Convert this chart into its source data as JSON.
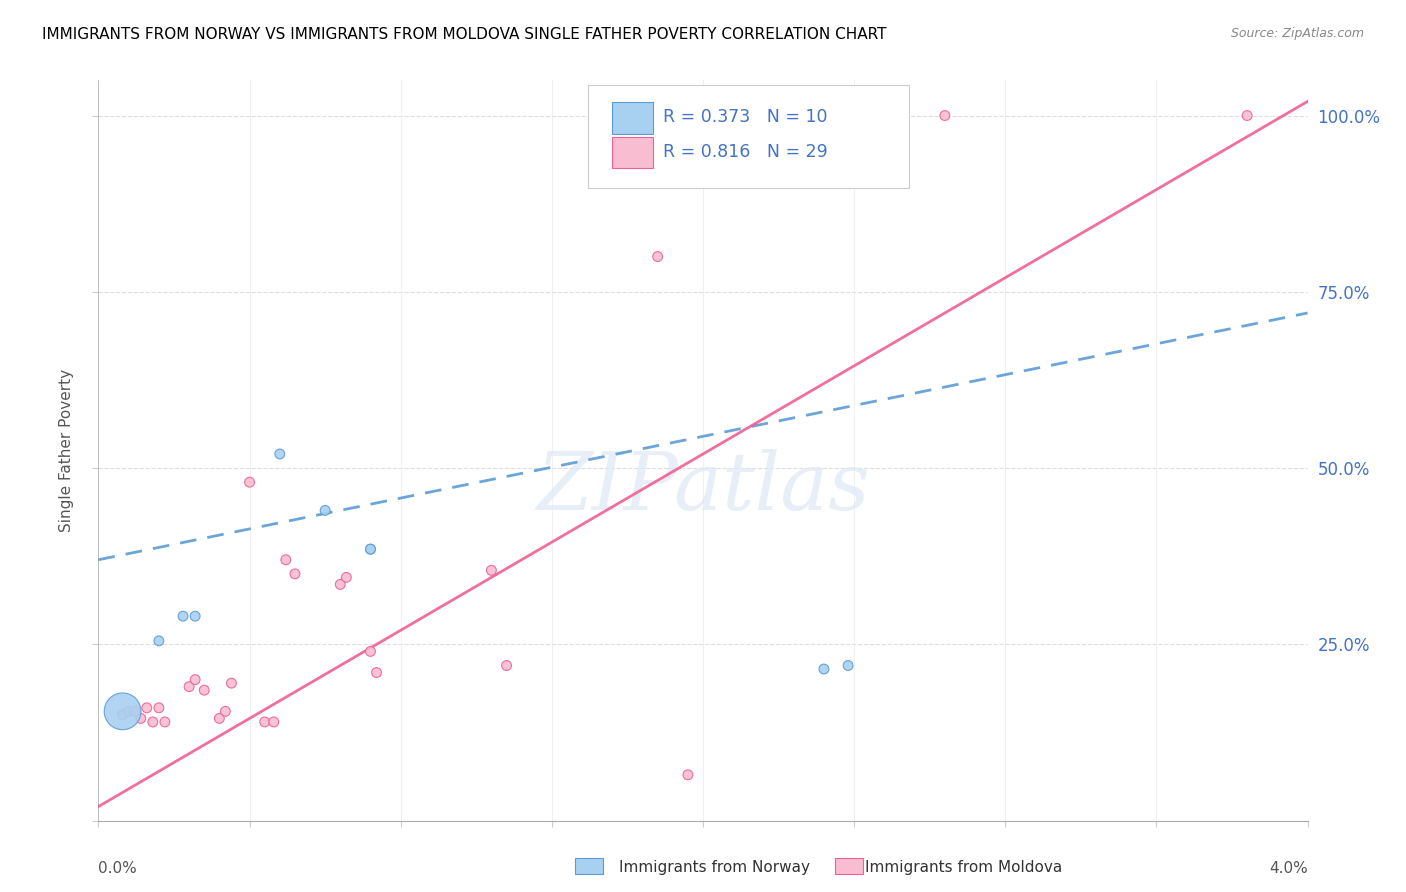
{
  "title": "IMMIGRANTS FROM NORWAY VS IMMIGRANTS FROM MOLDOVA SINGLE FATHER POVERTY CORRELATION CHART",
  "source": "Source: ZipAtlas.com",
  "ylabel": "Single Father Poverty",
  "y_ticks": [
    0.0,
    0.25,
    0.5,
    0.75,
    1.0
  ],
  "y_tick_labels": [
    "",
    "25.0%",
    "50.0%",
    "75.0%",
    "100.0%"
  ],
  "x_range": [
    0.0,
    0.04
  ],
  "y_range": [
    0.0,
    1.05
  ],
  "norway_R": 0.373,
  "norway_N": 10,
  "moldova_R": 0.816,
  "moldova_N": 29,
  "norway_color": "#A8D0F0",
  "moldova_color": "#F8BDD0",
  "norway_edge_color": "#5B9BD5",
  "moldova_edge_color": "#F06090",
  "norway_line_color": "#5B9BD5",
  "moldova_line_color": "#F06090",
  "legend_text_color": "#4472C4",
  "axis_label_color": "#4472C4",
  "watermark": "ZIPatlas",
  "norway_points": [
    [
      0.0008,
      0.155
    ],
    [
      0.002,
      0.255
    ],
    [
      0.0028,
      0.29
    ],
    [
      0.0032,
      0.29
    ],
    [
      0.006,
      0.52
    ],
    [
      0.0075,
      0.44
    ],
    [
      0.009,
      0.385
    ],
    [
      0.009,
      0.385
    ],
    [
      0.024,
      0.215
    ],
    [
      0.0248,
      0.22
    ]
  ],
  "norway_sizes": [
    700,
    50,
    50,
    50,
    50,
    50,
    50,
    50,
    50,
    50
  ],
  "moldova_points": [
    [
      0.0008,
      0.15
    ],
    [
      0.001,
      0.155
    ],
    [
      0.0012,
      0.155
    ],
    [
      0.0014,
      0.145
    ],
    [
      0.0016,
      0.16
    ],
    [
      0.0018,
      0.14
    ],
    [
      0.002,
      0.16
    ],
    [
      0.0022,
      0.14
    ],
    [
      0.003,
      0.19
    ],
    [
      0.0032,
      0.2
    ],
    [
      0.0035,
      0.185
    ],
    [
      0.004,
      0.145
    ],
    [
      0.0042,
      0.155
    ],
    [
      0.0044,
      0.195
    ],
    [
      0.005,
      0.48
    ],
    [
      0.0055,
      0.14
    ],
    [
      0.0058,
      0.14
    ],
    [
      0.0062,
      0.37
    ],
    [
      0.0065,
      0.35
    ],
    [
      0.008,
      0.335
    ],
    [
      0.0082,
      0.345
    ],
    [
      0.009,
      0.24
    ],
    [
      0.0092,
      0.21
    ],
    [
      0.013,
      0.355
    ],
    [
      0.0135,
      0.22
    ],
    [
      0.0185,
      0.8
    ],
    [
      0.0195,
      0.065
    ],
    [
      0.028,
      1.0
    ],
    [
      0.038,
      1.0
    ]
  ],
  "moldova_sizes": [
    50,
    50,
    50,
    50,
    50,
    50,
    50,
    50,
    50,
    50,
    50,
    50,
    50,
    50,
    50,
    50,
    50,
    50,
    50,
    50,
    50,
    50,
    50,
    50,
    50,
    50,
    50,
    50,
    50
  ],
  "norway_trend": [
    0.0,
    0.04,
    0.37,
    0.72
  ],
  "moldova_trend": [
    0.0,
    0.04,
    0.02,
    1.02
  ]
}
